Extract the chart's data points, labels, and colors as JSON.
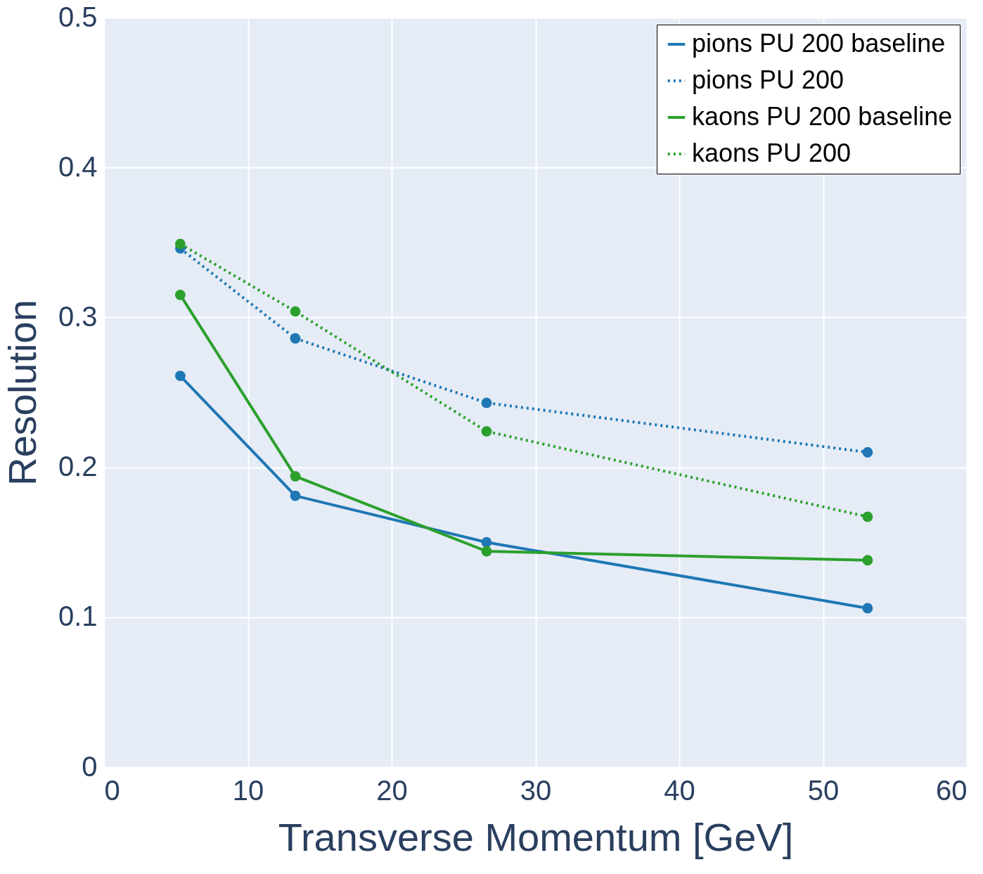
{
  "chart_data": {
    "type": "line",
    "xlabel": "Transverse Momentum [GeV]",
    "ylabel": "Resolution",
    "x": [
      5.3,
      13.3,
      26.6,
      53.1
    ],
    "series": [
      {
        "name": "pions PU 200 baseline",
        "color": "#1f77b4",
        "line_style": "solid",
        "values": [
          0.261,
          0.181,
          0.15,
          0.106
        ]
      },
      {
        "name": "pions PU 200",
        "color": "#1f77b4",
        "line_style": "dotted",
        "values": [
          0.346,
          0.286,
          0.243,
          0.21
        ]
      },
      {
        "name": "kaons PU 200 baseline",
        "color": "#2ca02c",
        "line_style": "solid",
        "values": [
          0.315,
          0.194,
          0.144,
          0.138
        ]
      },
      {
        "name": "kaons PU 200",
        "color": "#2ca02c",
        "line_style": "dotted",
        "values": [
          0.349,
          0.304,
          0.224,
          0.167
        ]
      }
    ],
    "xlim": [
      0,
      60
    ],
    "xticks": [
      0,
      10,
      20,
      30,
      40,
      50,
      60
    ],
    "ylim": [
      0,
      0.5
    ],
    "yticks": [
      0,
      0.1,
      0.2,
      0.3,
      0.4,
      0.5
    ],
    "grid": true,
    "legend": "top right",
    "marker": "circle"
  }
}
